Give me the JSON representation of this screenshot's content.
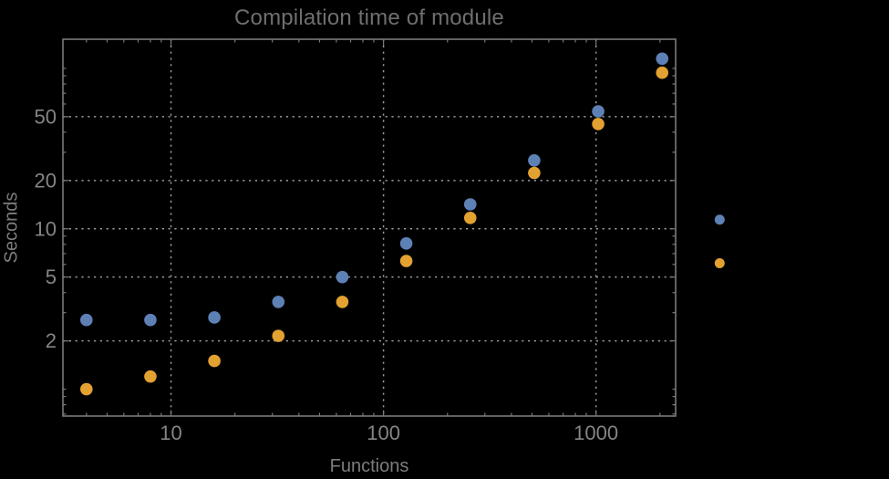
{
  "chart_data": {
    "type": "scatter",
    "title": "Compilation time of module",
    "xlabel": "Functions",
    "ylabel": "Seconds",
    "x_scale": "log",
    "y_scale": "log",
    "xlim": [
      3.1,
      2370
    ],
    "ylim": [
      0.68,
      152
    ],
    "grid": "dotted",
    "legend_position": "right-of-frame",
    "x": [
      4,
      8,
      16,
      32,
      64,
      128,
      256,
      512,
      1024,
      2048
    ],
    "series": [
      {
        "name": "series-1",
        "color": "#5E81B5",
        "marker": "disk",
        "values": [
          2.7,
          2.7,
          2.8,
          3.5,
          5.0,
          8.1,
          14.2,
          26.7,
          54,
          115
        ]
      },
      {
        "name": "series-2",
        "color": "#E3A132",
        "marker": "disk",
        "values": [
          1.0,
          1.2,
          1.5,
          2.15,
          3.5,
          6.3,
          11.7,
          22.3,
          45,
          94
        ]
      }
    ],
    "x_ticks": {
      "major": [
        10,
        100,
        1000
      ],
      "major_labels": [
        "10",
        "100",
        "1000"
      ],
      "minor": [
        4,
        5,
        6,
        7,
        8,
        9,
        20,
        30,
        40,
        50,
        60,
        70,
        80,
        90,
        200,
        300,
        400,
        500,
        600,
        700,
        800,
        900,
        2000
      ]
    },
    "y_ticks": {
      "major": [
        2,
        5,
        10,
        20,
        50
      ],
      "major_labels": [
        "2",
        "5",
        "10",
        "20",
        "50"
      ],
      "minor": [
        0.7,
        0.8,
        0.9,
        1,
        3,
        4,
        6,
        7,
        8,
        9,
        30,
        40,
        60,
        70,
        80,
        90,
        100
      ]
    },
    "legend_markers": [
      {
        "name": "legend-marker-series-1",
        "color": "#5E81B5",
        "y_value": 11.4,
        "label": ""
      },
      {
        "name": "legend-marker-series-2",
        "color": "#E3A132",
        "y_value": 6.1,
        "label": ""
      }
    ],
    "colors": {
      "background": "#000000",
      "frame": "#7a7a7a",
      "grid": "#9a9a9a",
      "tick_label": "#858585",
      "title": "#6f6f6f",
      "axis_label": "#7d7d7d"
    }
  }
}
